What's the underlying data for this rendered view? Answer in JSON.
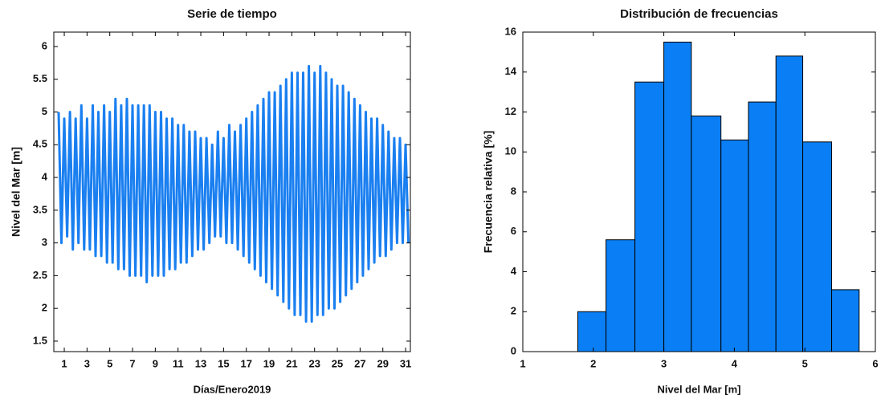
{
  "chart_data": [
    {
      "type": "line",
      "title": "Serie de tiempo",
      "xlabel": "Días/Enero2019",
      "ylabel": "Nivel del Mar [m]",
      "xlim": [
        0.08,
        31.42
      ],
      "ylim": [
        1.34,
        6.22
      ],
      "xticks": [
        1,
        3,
        5,
        7,
        9,
        11,
        13,
        15,
        17,
        19,
        21,
        23,
        25,
        27,
        29,
        31
      ],
      "yticks": [
        1.5,
        2,
        2.5,
        3,
        3.5,
        4,
        4.5,
        5,
        5.5,
        6
      ],
      "x": [
        0.5,
        0.75,
        1,
        1.25,
        1.5,
        1.75,
        2,
        2.25,
        2.5,
        2.75,
        3,
        3.25,
        3.5,
        3.75,
        4,
        4.25,
        4.5,
        4.75,
        5,
        5.25,
        5.5,
        5.75,
        6,
        6.25,
        6.5,
        6.75,
        7,
        7.25,
        7.5,
        7.75,
        8,
        8.25,
        8.5,
        8.75,
        9,
        9.25,
        9.5,
        9.75,
        10,
        10.25,
        10.5,
        10.75,
        11,
        11.25,
        11.5,
        11.75,
        12,
        12.25,
        12.5,
        12.75,
        13,
        13.25,
        13.5,
        13.75,
        14,
        14.25,
        14.5,
        14.75,
        15,
        15.25,
        15.5,
        15.75,
        16,
        16.25,
        16.5,
        16.75,
        17,
        17.25,
        17.5,
        17.75,
        18,
        18.25,
        18.5,
        18.75,
        19,
        19.25,
        19.5,
        19.75,
        20,
        20.25,
        20.5,
        20.75,
        21,
        21.25,
        21.5,
        21.75,
        22,
        22.25,
        22.5,
        22.75,
        23,
        23.25,
        23.5,
        23.75,
        24,
        24.25,
        24.5,
        24.75,
        25,
        25.25,
        25.5,
        25.75,
        26,
        26.25,
        26.5,
        26.75,
        27,
        27.25,
        27.5,
        27.75,
        28,
        28.25,
        28.5,
        28.75,
        29,
        29.25,
        29.5,
        29.75,
        30,
        30.25,
        30.5,
        30.75,
        31,
        31.25
      ],
      "series": [
        {
          "color": "#1a7ff0",
          "values": [
            5.0,
            3.0,
            4.9,
            3.1,
            5.0,
            2.9,
            4.9,
            3.0,
            5.1,
            2.9,
            4.9,
            2.9,
            5.1,
            2.8,
            5.0,
            2.8,
            5.1,
            2.7,
            5.0,
            2.7,
            5.2,
            2.6,
            5.1,
            2.6,
            5.2,
            2.5,
            5.1,
            2.5,
            5.1,
            2.5,
            5.1,
            2.4,
            5.1,
            2.5,
            5.0,
            2.5,
            5.0,
            2.5,
            4.9,
            2.6,
            4.9,
            2.6,
            4.8,
            2.7,
            4.8,
            2.7,
            4.7,
            2.8,
            4.7,
            2.9,
            4.6,
            2.9,
            4.6,
            3.0,
            4.5,
            3.1,
            4.7,
            3.1,
            4.6,
            3.0,
            4.8,
            3.0,
            4.7,
            2.9,
            4.8,
            2.8,
            4.9,
            2.7,
            5.0,
            2.6,
            5.1,
            2.5,
            5.2,
            2.4,
            5.3,
            2.3,
            5.3,
            2.2,
            5.4,
            2.1,
            5.5,
            2.0,
            5.6,
            1.9,
            5.6,
            1.9,
            5.6,
            1.8,
            5.7,
            1.8,
            5.6,
            1.9,
            5.7,
            1.9,
            5.6,
            2.0,
            5.5,
            2.0,
            5.4,
            2.1,
            5.4,
            2.2,
            5.3,
            2.3,
            5.2,
            2.4,
            5.1,
            2.5,
            5.0,
            2.6,
            4.9,
            2.7,
            4.9,
            2.8,
            4.8,
            2.8,
            4.7,
            2.9,
            4.6,
            3.0,
            4.6,
            3.0,
            4.5,
            3.0
          ]
        }
      ]
    },
    {
      "type": "histogram",
      "title": "Distribución de frecuencias",
      "xlabel": "Nivel del Mar [m]",
      "ylabel": "Frecuencia relativa [%]",
      "xlim": [
        1,
        6
      ],
      "ylim": [
        0,
        16
      ],
      "xticks": [
        1,
        2,
        3,
        4,
        5,
        6
      ],
      "yticks": [
        0,
        2,
        4,
        6,
        8,
        10,
        12,
        14,
        16
      ],
      "bins": [
        1.78,
        2.18,
        2.59,
        3.0,
        3.39,
        3.81,
        4.2,
        4.59,
        4.97,
        5.38,
        5.77
      ],
      "values": [
        2.0,
        5.6,
        13.5,
        15.5,
        11.8,
        10.6,
        12.5,
        14.8,
        10.5,
        3.1
      ],
      "color": "#0a7ff5"
    }
  ]
}
